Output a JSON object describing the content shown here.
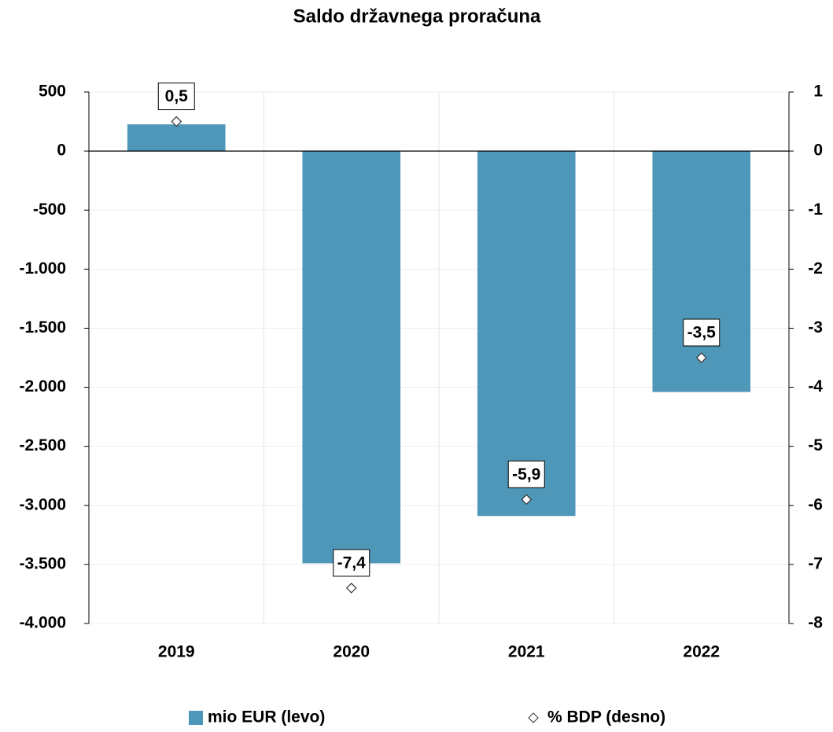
{
  "chart_data": {
    "type": "bar",
    "title": "Saldo državnega proračuna",
    "categories": [
      "2019",
      "2020",
      "2021",
      "2022"
    ],
    "series": [
      {
        "name": "mio EUR (levo)",
        "type": "bar",
        "color": "#4f97b8",
        "values": [
          226,
          -3490,
          -3090,
          -2040
        ]
      },
      {
        "name": "% BDP (desno)",
        "type": "scatter",
        "axis": "y2",
        "color": "#ffffff",
        "values": [
          0.5,
          -7.4,
          -5.9,
          -3.5
        ],
        "value_labels": [
          "0,5",
          "-7,4",
          "-5,9",
          "-3,5"
        ]
      }
    ],
    "ylim": [
      -4000,
      500
    ],
    "yticks": [
      {
        "value": -4000,
        "label": "-4.000"
      },
      {
        "value": -3500,
        "label": "-3.500"
      },
      {
        "value": -3000,
        "label": "-3.000"
      },
      {
        "value": -2500,
        "label": "-2.500"
      },
      {
        "value": -2000,
        "label": "-2.000"
      },
      {
        "value": -1500,
        "label": "-1.500"
      },
      {
        "value": -1000,
        "label": "-1.000"
      },
      -500,
      0,
      500
    ],
    "y2lim": [
      -8,
      1
    ],
    "y2ticks": [
      -8,
      -7,
      -6,
      -5,
      -4,
      -3,
      -2,
      -1,
      0,
      1
    ],
    "grid": true,
    "legend": "bottom"
  }
}
